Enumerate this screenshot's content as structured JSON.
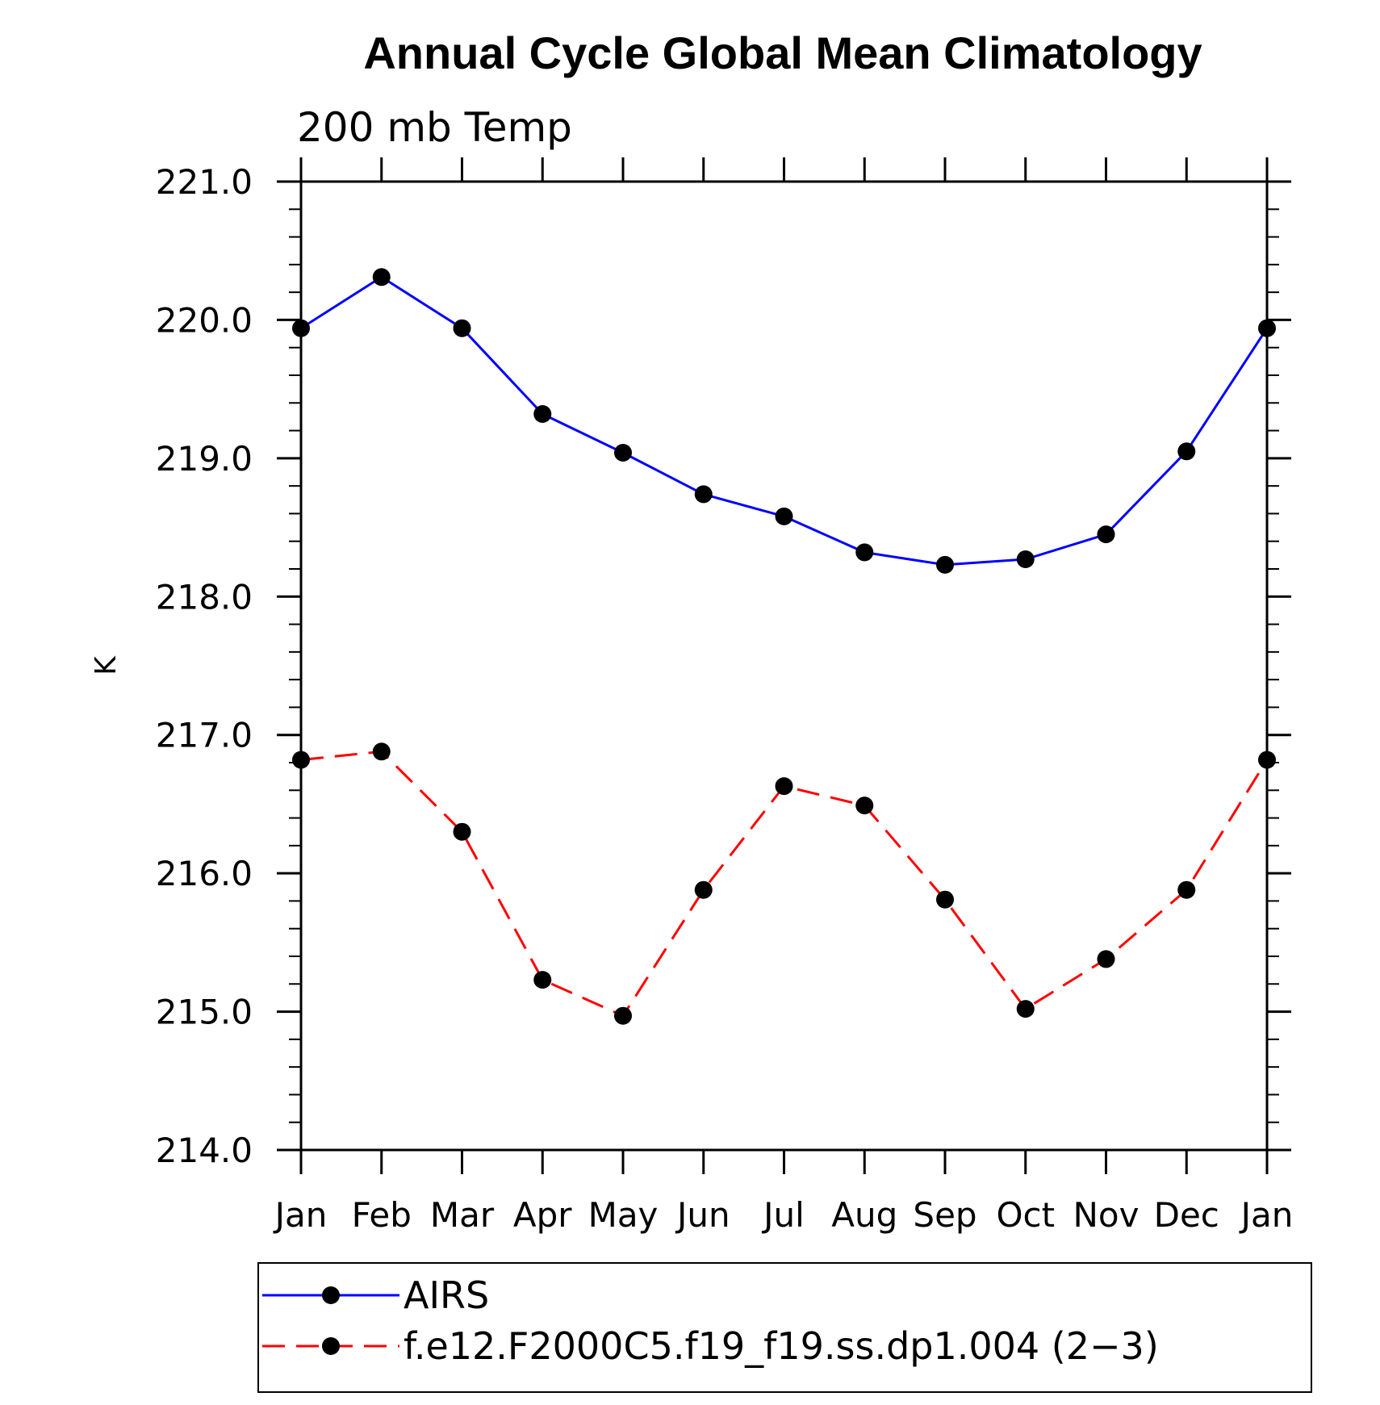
{
  "chart_data": {
    "type": "line",
    "title": "Annual Cycle Global Mean Climatology",
    "subtitle": "200 mb Temp",
    "xlabel": "",
    "ylabel": "K",
    "ylim": [
      214.0,
      221.0
    ],
    "yticks": [
      "214.0",
      "215.0",
      "216.0",
      "217.0",
      "218.0",
      "219.0",
      "220.0",
      "221.0"
    ],
    "categories": [
      "Jan",
      "Feb",
      "Mar",
      "Apr",
      "May",
      "Jun",
      "Jul",
      "Aug",
      "Sep",
      "Oct",
      "Nov",
      "Dec",
      "Jan"
    ],
    "grid": false,
    "legend_position": "bottom",
    "series": [
      {
        "name": "AIRS",
        "color": "#0000ff",
        "dash": "solid",
        "values": [
          219.94,
          220.31,
          219.94,
          219.32,
          219.04,
          218.74,
          218.58,
          218.32,
          218.23,
          218.27,
          218.45,
          219.05,
          219.94
        ]
      },
      {
        "name": "f.e12.F2000C5.f19_f19.ss.dp1.004 (2−3)",
        "color": "#ff0000",
        "dash": "dashed",
        "values": [
          216.82,
          216.88,
          216.3,
          215.23,
          214.97,
          215.88,
          216.63,
          216.49,
          215.81,
          215.02,
          215.38,
          215.88,
          216.82
        ]
      }
    ]
  }
}
